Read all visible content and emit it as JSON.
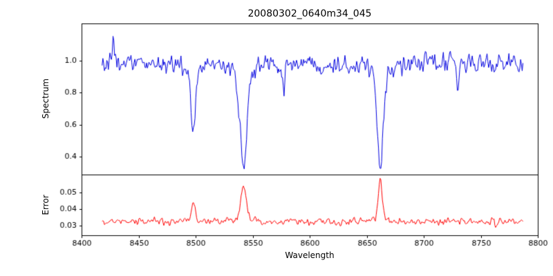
{
  "figure": {
    "background": "#ffffff",
    "text_color": "#000000"
  },
  "chart_data": [
    {
      "type": "line",
      "title": "20080302_0640m34_045",
      "xlabel": "Wavelength",
      "ylabel": "Spectrum",
      "series_color": "#0000e0",
      "xlim": [
        8400,
        8800
      ],
      "ylim": [
        0.29,
        1.23
      ],
      "xtick_values": [
        8400,
        8450,
        8500,
        8550,
        8600,
        8650,
        8700,
        8750,
        8800
      ],
      "xtick_labels": [
        "8400",
        "8450",
        "8500",
        "8550",
        "8600",
        "8650",
        "8700",
        "8750",
        "8800"
      ],
      "ytick_values": [
        0.4,
        0.6,
        0.8,
        1.0
      ],
      "ytick_labels": [
        "0.4",
        "0.6",
        "0.8",
        "1.0"
      ],
      "x_data_range": [
        8418,
        8787
      ],
      "n_points": 540,
      "baseline": 0.98,
      "noise_amplitude": 0.08,
      "lines": [
        {
          "center": 8498.0,
          "amplitude": -0.44,
          "width": 2.0
        },
        {
          "center": 8542.0,
          "amplitude": -0.62,
          "width": 3.0
        },
        {
          "center": 8662.0,
          "amplitude": -0.62,
          "width": 2.4
        }
      ],
      "features": [
        {
          "x": 8428,
          "dy": 0.13
        },
        {
          "x": 8577,
          "dy": -0.17
        },
        {
          "x": 8730,
          "dy": -0.16
        }
      ]
    },
    {
      "type": "line",
      "title": "",
      "xlabel": "Wavelength",
      "ylabel": "Error",
      "series_color": "#ff0000",
      "xlim": [
        8400,
        8800
      ],
      "ylim": [
        0.0242,
        0.0608
      ],
      "ytick_values": [
        0.03,
        0.04,
        0.05
      ],
      "ytick_labels": [
        "0.03",
        "0.04",
        "0.05"
      ],
      "x_data_range": [
        8418,
        8787
      ],
      "n_points": 540,
      "baseline": 0.0325,
      "noise_amplitude": 0.0028,
      "lines": [
        {
          "center": 8498.0,
          "amplitude": 0.012,
          "width": 1.6
        },
        {
          "center": 8542.0,
          "amplitude": 0.021,
          "width": 2.2
        },
        {
          "center": 8662.0,
          "amplitude": 0.0245,
          "width": 1.6
        }
      ],
      "features": [
        {
          "x": 8763,
          "dy": -0.0035
        }
      ]
    }
  ]
}
